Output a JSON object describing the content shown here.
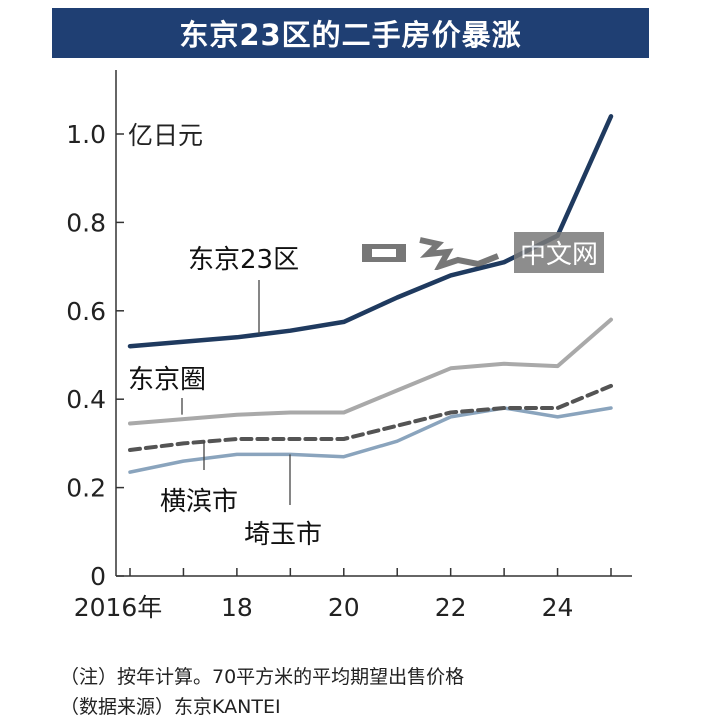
{
  "chart_data": {
    "type": "line",
    "title": "东京23区的二手房价暴涨",
    "ylabel": "亿日元",
    "xlabel": "",
    "ylim": [
      0,
      1.1
    ],
    "xlim": [
      2016,
      2025.2
    ],
    "x": [
      2016,
      2017,
      2018,
      2019,
      2020,
      2021,
      2022,
      2023,
      2024,
      2025
    ],
    "x_ticks": [
      2016,
      2018,
      2020,
      2022,
      2024
    ],
    "x_tick_labels": [
      "2016年",
      "18",
      "20",
      "22",
      "24"
    ],
    "y_ticks": [
      0,
      0.2,
      0.4,
      0.6,
      0.8,
      1.0
    ],
    "y_tick_labels": [
      "0",
      "0.2",
      "0.4",
      "0.6",
      "0.8",
      "1.0"
    ],
    "series": [
      {
        "name": "东京23区",
        "color": "#1f3a5f",
        "style": "solid",
        "values": [
          0.52,
          0.53,
          0.54,
          0.555,
          0.575,
          0.63,
          0.68,
          0.71,
          0.77,
          1.04
        ]
      },
      {
        "name": "东京圈",
        "color": "#a9a9a9",
        "style": "solid",
        "values": [
          0.345,
          0.355,
          0.365,
          0.37,
          0.37,
          0.42,
          0.47,
          0.48,
          0.475,
          0.58
        ]
      },
      {
        "name": "横滨市",
        "color": "#545454",
        "style": "dashed",
        "values": [
          0.285,
          0.3,
          0.31,
          0.31,
          0.31,
          0.34,
          0.37,
          0.38,
          0.38,
          0.43
        ]
      },
      {
        "name": "埼玉市",
        "color": "#8aa4bd",
        "style": "solid",
        "values": [
          0.235,
          0.26,
          0.275,
          0.275,
          0.27,
          0.305,
          0.36,
          0.38,
          0.36,
          0.38
        ]
      }
    ],
    "grid": false,
    "legend": "inline-labels"
  },
  "notes": [
    "（注）按年计算。70平方米的平均期望出售价格",
    "（数据来源）东京KANTEI"
  ],
  "watermark": "中文网"
}
